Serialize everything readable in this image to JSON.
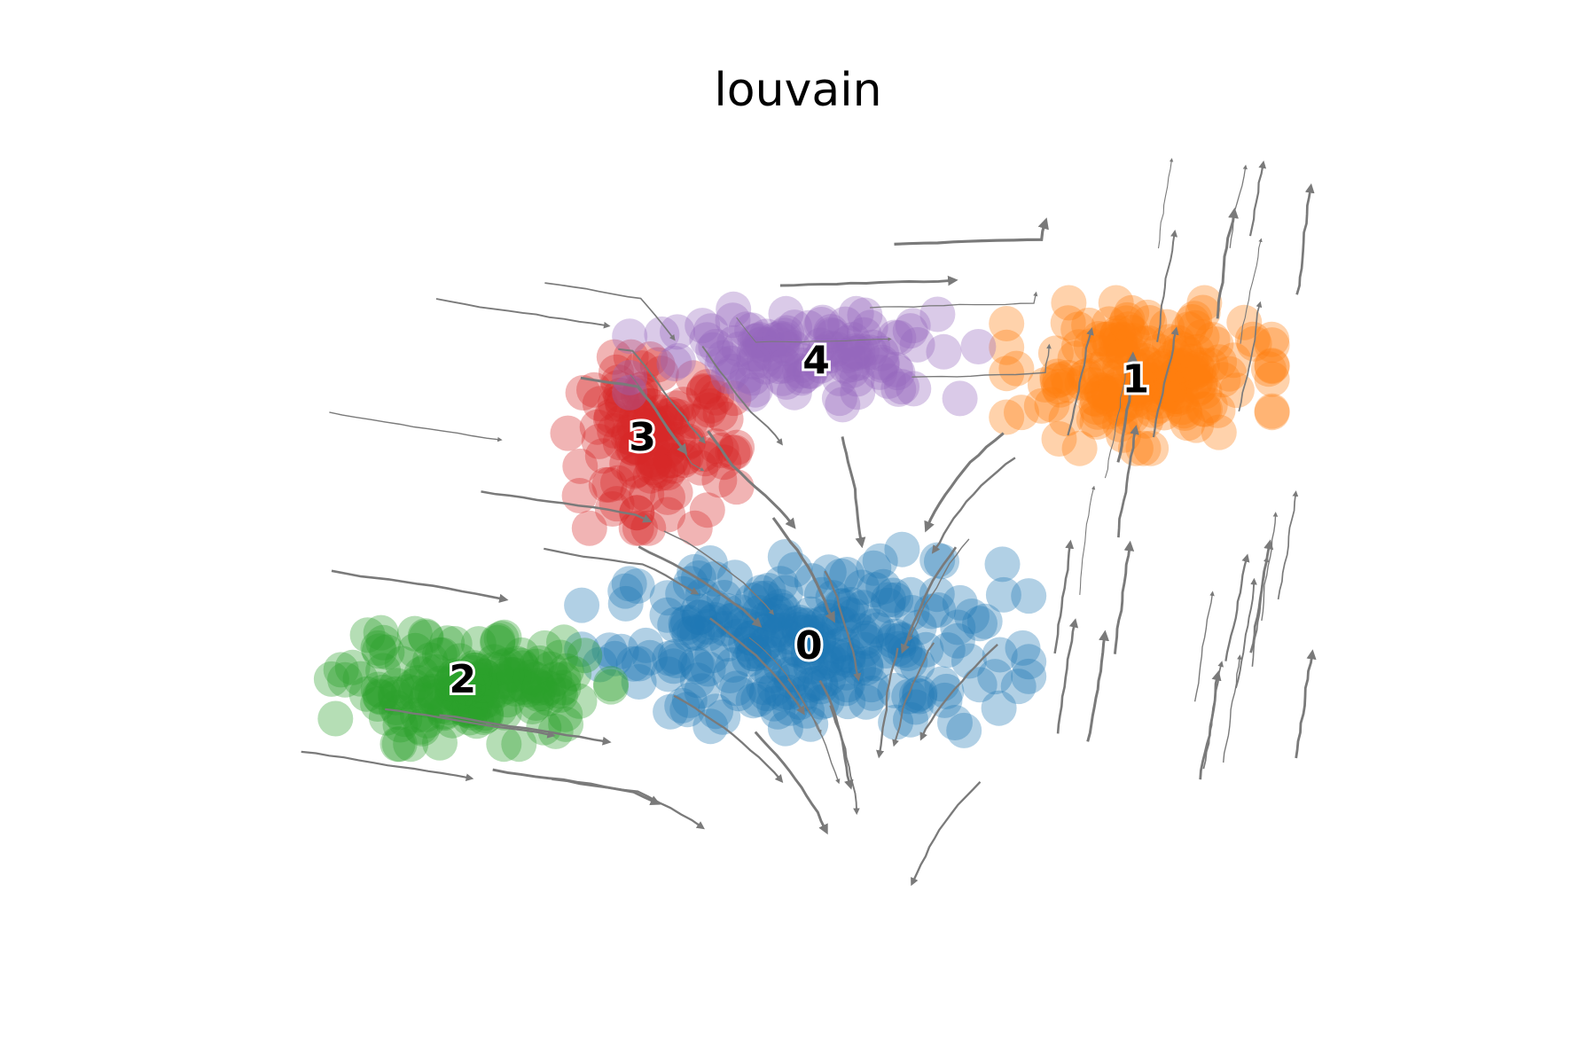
{
  "chart_data": {
    "type": "scatter",
    "title": "louvain",
    "xlabel": "",
    "ylabel": "",
    "grid": false,
    "legend": "on data",
    "point_alpha": 0.35,
    "stream_color": "#7a7a7a",
    "xlim": [
      0,
      100
    ],
    "ylim": [
      0,
      100
    ],
    "clusters": [
      {
        "name": "0",
        "color": "#1f77b4",
        "center": [
          49.5,
          35.0
        ],
        "spread": [
          16.0,
          11.0
        ],
        "n": 260,
        "label_pos": [
          49.8,
          34.4
        ]
      },
      {
        "name": "1",
        "color": "#ff7f0e",
        "center": [
          77.0,
          71.0
        ],
        "spread": [
          9.5,
          8.5
        ],
        "n": 200,
        "label_pos": [
          76.7,
          70.2
        ]
      },
      {
        "name": "2",
        "color": "#2ca02c",
        "center": [
          22.0,
          29.0
        ],
        "spread": [
          10.0,
          6.5
        ],
        "n": 170,
        "label_pos": [
          21.3,
          29.9
        ]
      },
      {
        "name": "3",
        "color": "#d62728",
        "center": [
          37.0,
          62.0
        ],
        "spread": [
          6.5,
          10.0
        ],
        "n": 130,
        "label_pos": [
          36.1,
          62.4
        ]
      },
      {
        "name": "4",
        "color": "#9467bd",
        "center": [
          50.0,
          74.0
        ],
        "spread": [
          13.0,
          6.0
        ],
        "n": 120,
        "label_pos": [
          50.4,
          72.7
        ]
      }
    ]
  }
}
